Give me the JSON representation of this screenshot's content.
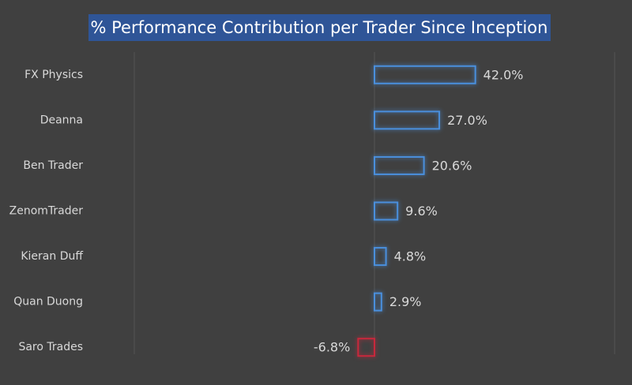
{
  "chart_data": {
    "type": "bar",
    "orientation": "horizontal",
    "title": "% Performance Contribution per Trader Since Inception",
    "categories": [
      "FX Physics",
      "Deanna",
      "Ben Trader",
      "ZenomTrader",
      "Kieran Duff",
      "Quan Duong",
      "Saro Trades"
    ],
    "values": [
      42.0,
      27.0,
      20.6,
      9.6,
      4.8,
      2.9,
      -6.8
    ],
    "value_labels": [
      "42.0%",
      "27.0%",
      "20.6%",
      "9.6%",
      "4.8%",
      "2.9%",
      "-6.8%"
    ],
    "color": "#4a8fdc",
    "negative_color": "#c8283c",
    "xlim": [
      -100,
      100
    ]
  }
}
